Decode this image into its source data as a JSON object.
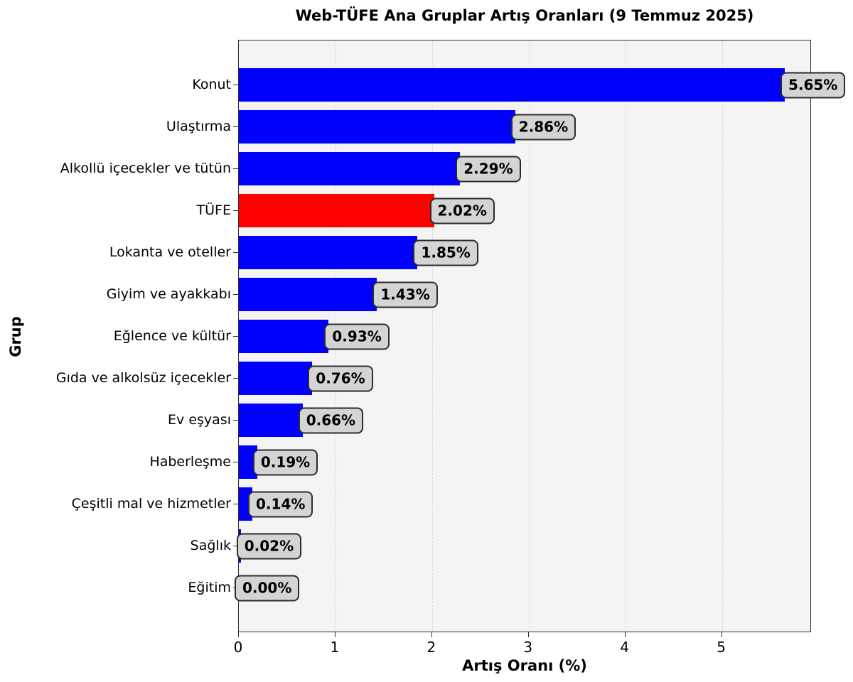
{
  "title": "Web-TÜFE Ana Gruplar Artış Oranları (9 Temmuz 2025)",
  "chart_data": {
    "type": "bar",
    "orientation": "horizontal",
    "title": "Web-TÜFE Ana Gruplar Artış Oranları (9 Temmuz 2025)",
    "xlabel": "Artış Oranı (%)",
    "ylabel": "Grup",
    "categories": [
      "Konut",
      "Ulaştırma",
      "Alkollü içecekler ve tütün",
      "TÜFE",
      "Lokanta ve oteller",
      "Giyim ve ayakkabı",
      "Eğlence ve kültür",
      "Gıda ve alkolsüz içecekler",
      "Ev eşyası",
      "Haberleşme",
      "Çeşitli mal ve hizmetler",
      "Sağlık",
      "Eğitim"
    ],
    "values": [
      5.65,
      2.86,
      2.29,
      2.02,
      1.85,
      1.43,
      0.93,
      0.76,
      0.66,
      0.19,
      0.14,
      0.02,
      0.0
    ],
    "value_labels": [
      "5.65%",
      "2.86%",
      "2.29%",
      "2.02%",
      "1.85%",
      "1.43%",
      "0.93%",
      "0.76%",
      "0.66%",
      "0.19%",
      "0.14%",
      "0.02%",
      "0.00%"
    ],
    "highlight_category": "TÜFE",
    "xlim": [
      0,
      5.93
    ],
    "xticks": [
      0,
      1,
      2,
      3,
      4,
      5
    ],
    "grid": "vertical-dashed",
    "legend": "none",
    "colors": {
      "bar": "#0000ff",
      "highlight_bar": "#ff0000",
      "plot_background": "#f4f4f4",
      "value_box_background": "#d4d4d4",
      "value_box_border": "#2b2b2b",
      "spine": "#2f2f2f",
      "grid": "#dcdcdc",
      "text": "#000000"
    }
  }
}
